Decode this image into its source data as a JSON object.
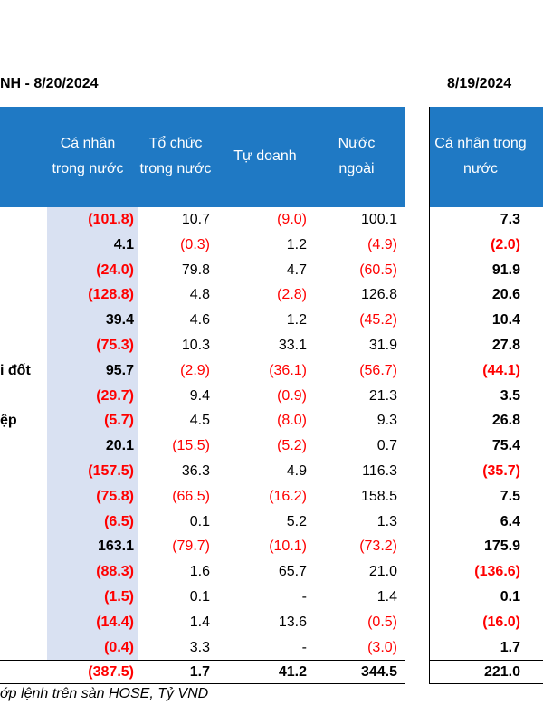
{
  "title_left": "NH - 8/20/2024",
  "title_right": "8/19/2024",
  "headers_left": [
    "Cá nhân trong nước",
    "Tổ chức trong nước",
    "Tự doanh",
    "Nước ngoài"
  ],
  "header_right": "Cá nhân trong nước",
  "row_labels": {
    "r6": "i đốt",
    "r8": "ệp"
  },
  "rows": [
    {
      "ind": "(101.8)",
      "org": "10.7",
      "prop": "(9.0)",
      "for": "100.1",
      "prev": "7.3"
    },
    {
      "ind": "4.1",
      "org": "(0.3)",
      "prop": "1.2",
      "for": "(4.9)",
      "prev": "(2.0)"
    },
    {
      "ind": "(24.0)",
      "org": "79.8",
      "prop": "4.7",
      "for": "(60.5)",
      "prev": "91.9"
    },
    {
      "ind": "(128.8)",
      "org": "4.8",
      "prop": "(2.8)",
      "for": "126.8",
      "prev": "20.6"
    },
    {
      "ind": "39.4",
      "org": "4.6",
      "prop": "1.2",
      "for": "(45.2)",
      "prev": "10.4"
    },
    {
      "ind": "(75.3)",
      "org": "10.3",
      "prop": "33.1",
      "for": "31.9",
      "prev": "27.8"
    },
    {
      "ind": "95.7",
      "org": "(2.9)",
      "prop": "(36.1)",
      "for": "(56.7)",
      "prev": "(44.1)"
    },
    {
      "ind": "(29.7)",
      "org": "9.4",
      "prop": "(0.9)",
      "for": "21.3",
      "prev": "3.5"
    },
    {
      "ind": "(5.7)",
      "org": "4.5",
      "prop": "(8.0)",
      "for": "9.3",
      "prev": "26.8"
    },
    {
      "ind": "20.1",
      "org": "(15.5)",
      "prop": "(5.2)",
      "for": "0.7",
      "prev": "75.4"
    },
    {
      "ind": "(157.5)",
      "org": "36.3",
      "prop": "4.9",
      "for": "116.3",
      "prev": "(35.7)"
    },
    {
      "ind": "(75.8)",
      "org": "(66.5)",
      "prop": "(16.2)",
      "for": "158.5",
      "prev": "7.5"
    },
    {
      "ind": "(6.5)",
      "org": "0.1",
      "prop": "5.2",
      "for": "1.3",
      "prev": "6.4"
    },
    {
      "ind": "163.1",
      "org": "(79.7)",
      "prop": "(10.1)",
      "for": "(73.2)",
      "prev": "175.9"
    },
    {
      "ind": "(88.3)",
      "org": "1.6",
      "prop": "65.7",
      "for": "21.0",
      "prev": "(136.6)"
    },
    {
      "ind": "(1.5)",
      "org": "0.1",
      "prop": "-",
      "for": "1.4",
      "prev": "0.1"
    },
    {
      "ind": "(14.4)",
      "org": "1.4",
      "prop": "13.6",
      "for": "(0.5)",
      "prev": "(16.0)"
    },
    {
      "ind": "(0.4)",
      "org": "3.3",
      "prop": "-",
      "for": "(3.0)",
      "prev": "1.7"
    }
  ],
  "total": {
    "ind": "(387.5)",
    "org": "1.7",
    "prop": "41.2",
    "for": "344.5",
    "prev": "221.0"
  },
  "footnote": "ớp lệnh trên sàn HOSE, Tỷ VND"
}
